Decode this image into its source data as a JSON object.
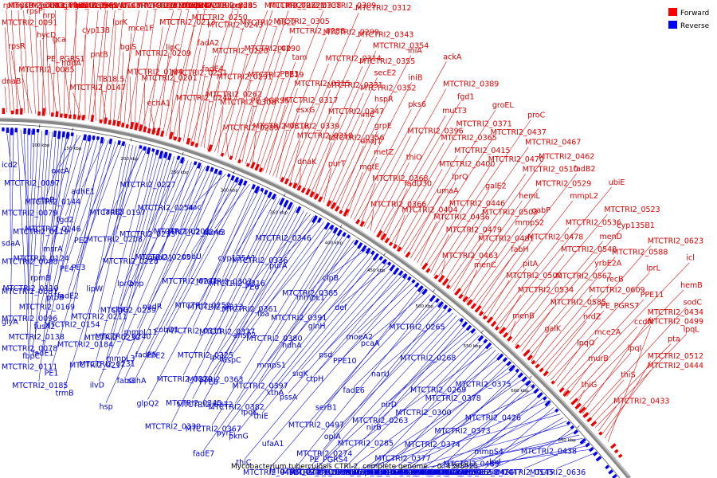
{
  "caption": "Mycobacterium tuberculosis CTRI-2, complete genome. - 0..4398525",
  "legend": [
    {
      "label": "Forward",
      "color": "#ff0000"
    },
    {
      "label": "Reverse",
      "color": "#0000ff"
    }
  ],
  "colors": {
    "forward": "#dd0000",
    "reverse": "#0000dd",
    "backbone": "#888888"
  },
  "ticks": [
    "100 kbp",
    "150 kbp",
    "200 kbp",
    "250 kbp",
    "300 kbp",
    "350 kbp",
    "400 kbp",
    "450 kbp",
    "500 kbp",
    "550 kbp",
    "600 kbp",
    "650 kbp"
  ],
  "forward_genes": [
    "dnaB",
    "MTCTRI2_0091",
    "rplI",
    "MTCTRI2_0083",
    "rpsR",
    "hycP",
    "ssb",
    "MTCTRI2_0085",
    "rpsF",
    "MTCTRI2_0086",
    "ponA1",
    "hycD",
    "nrp",
    "MTCTRI2_0109",
    "PE_PGRS1",
    "gca",
    "gmhA",
    "gmhB",
    "hddA",
    "fadD7",
    "MTCTRI2_0148",
    "MTCTRI2_0147",
    "cyp138",
    "ephF",
    "treS",
    "pntB",
    "pntAb",
    "pntAa",
    "TB18.5",
    "lprK",
    "MTCTRI2_0162",
    "MTCTRI2_0191",
    "bglS",
    "mce1F",
    "MTCTRI2_0189",
    "MTCTRI2_0194",
    "MTCTRI2_0209",
    "MTCTRI2_0207",
    "MTCTRI2_0203",
    "MTCTRI2_0201",
    "MTCTRI2_0213",
    "MTCTRI2_0199",
    "echA1",
    "lipC",
    "fadD4",
    "pckA",
    "MTCTRI2_0251",
    "MTCTRI2_0250",
    "MTCTRI2_0245",
    "MTCTRI2_0244",
    "fadA2",
    "MTCTRI2_0243",
    "lpqI",
    "fadE4",
    "MTCTRI2_0220",
    "nrdB",
    "MTCTRI2_0262",
    "MTCTRI2_0291",
    "MTCTRI2_0322",
    "MTCTRI2_0277",
    "MTCTRI2_0308",
    "MTCTRI2_0290",
    "MTCTRI2_0321",
    "MTCTRI2_0289",
    "MTCTRI2_0319",
    "MTCTRI2_0305",
    "MTCTRI2_0338",
    "PE_PGRS5",
    "pcp",
    "MTCTRI2_0288",
    "MTCTRI2_0318",
    "PPE3",
    "tam",
    "MTCTRI2_0309",
    "MTCTRI2_0317",
    "MTCTRI2_0315",
    "MTCTRI2_0299",
    "MTCTRI2_0339",
    "esxG",
    "MTCTRI2_0314",
    "MTCTRI2_0312",
    "MTCTRI2_0310",
    "MTCTRI2_0331",
    "MTCTRI2_0343",
    "dnaK",
    "MTCTRI2_0347",
    "MTCTRI2_0355",
    "MTCTRI2_0354",
    "MTCTRI2_0356",
    "MTCTRI2_0352",
    "secE2",
    "purT",
    "iniC",
    "hspR",
    "iniA",
    "dnaJ1",
    "grpE",
    "iniB",
    "mgtE",
    "metZ",
    "pks6",
    "ackA",
    "MTCTRI2_0368",
    "MTCTRI2_0396",
    "MTCTRI2_0389",
    "MTCTRI2_0366",
    "thiO",
    "mutT3",
    "fgd1",
    "fadD30",
    "MTCTRI2_0365",
    "MTCTRI2_0371",
    "MTCTRI2_0404",
    "MTCTRI2_0400",
    "MTCTRI2_0415",
    "groEL",
    "umaA",
    "lprQ",
    "MTCTRI2_0437",
    "MTCTRI2_0436",
    "MTCTRI2_0446",
    "MTCTRI2_0470",
    "proC",
    "MTCTRI2_0479",
    "galE2",
    "MTCTRI2_0467",
    "MTCTRI2_0463",
    "MTCTRI2_0503",
    "MTCTRI2_0510",
    "MTCTRI2_0462",
    "MTCTRI2_0481",
    "hemL",
    "MTCTRI2_0529",
    "menC",
    "mmpS2",
    "gabP",
    "fadB2",
    "fabH",
    "MTCTRI2_0478",
    "mmpL2",
    "MTCTRI2_0500",
    "pitA",
    "MTCTRI2_0536",
    "ubiE",
    "MTCTRI2_0534",
    "MTCTRI2_0548",
    "MTCTRI2_0523",
    "menB",
    "MTCTRI2_0567",
    "menD",
    "cyp135B1",
    "MTCTRI2_0585",
    "yrbE2A",
    "MTCTRI2_0588",
    "galK",
    "MTCTRI2_0609",
    "recB",
    "MTCTRI2_0623",
    "nrdZ",
    "PE_PGRS7",
    "lprL",
    "lpqO",
    "mce2A",
    "PPE11",
    "icl",
    "murB",
    "ccdA",
    "hemB",
    "thiG",
    "lpqI",
    "MTCTRI2_0434",
    "sodC",
    "thiS",
    "pta",
    "lpqL",
    "MTCTRI2_0433",
    "MTCTRI2_0444",
    "MTCTRI2_0512",
    "MTCTRI2_0499"
  ],
  "reverse_genes": [
    "icd2",
    "sdaA",
    "glyA",
    "MTCTRI2_0078",
    "MTCTRI2_0079",
    "MTCTRI2_0081",
    "MTCTRI2_0096",
    "MTCTRI2_0097",
    "MTCTRI2_0098",
    "MTCTRI2_0110",
    "MTCTRI2_0111",
    "MTCTRI2_0119",
    "MTCTRI2_0124",
    "MTCTRI2_0138",
    "MTCTRI2_0144",
    "MTCTRI2_0146",
    "MTCTRI2_0169",
    "MTCTRI2_0185",
    "ctpB",
    "rpmB",
    "fbpC",
    "oxcA",
    "msrA",
    "fusA2",
    "fadE1",
    "fgd2",
    "ptbB",
    "MTCTRI2_0154",
    "adhE1",
    "PE4",
    "fadE2",
    "PE1",
    "PE2",
    "PE3",
    "MTCTRI2_0184",
    "MTCTRI2_0197",
    "MTCTRI2_0208",
    "MTCTRI2_0211",
    "trmB",
    "fadE3",
    "lipW",
    "MTCTRI2_0217",
    "MTCTRI2_0227",
    "MTCTRI2_0228",
    "MTCTRI2_0230",
    "MTCTRI2_0231",
    "MTCTRI2_0233",
    "MTCTRI2_0239",
    "MTCTRI2_0240",
    "MTCTRI2_0254",
    "lprO",
    "sigG",
    "ilvD",
    "MTCTRI2_0205",
    "php",
    "mmpL3",
    "MTCTRI2_0202",
    "gabD1",
    "mmpL11",
    "hsp",
    "MTCTRI2_0246",
    "nadR",
    "fabG",
    "aac",
    "MTCTRI2_0241",
    "fadE5",
    "sdhA",
    "cobU",
    "cobQ1",
    "PPE2",
    "nark3",
    "MTCTRI2_0252",
    "MTCTRI2_0311",
    "glpQ2",
    "MTCTRI2_0303",
    "MTCTRI2_0313",
    "MTCTRI2_0320",
    "cyp135A1",
    "MTCTRI2_0316",
    "MTCTRI2_0325",
    "MTCTRI2_0330",
    "MTCTRI2_0336",
    "MTCTRI2_0337",
    "MTCTRI2_0345",
    "MTCTRI2_0346",
    "MTCTRI2_0361",
    "MTCTRI2_0363",
    "MTCTRI2_0372",
    "PE6",
    "lpqJ",
    "PPE8",
    "purA",
    "ansP2",
    "aspC",
    "MTCTRI2_0367",
    "fba",
    "MTCTRI2_0380",
    "MTCTRI2_0382",
    "MTCTRI2_0385",
    "MTCTRI2_0391",
    "MTCTRI2_0397",
    "fadE7",
    "mmpL1",
    "mmpS1",
    "pyrE",
    "clpB",
    "ndhA",
    "lpqK",
    "pknG",
    "glnH",
    "xthA",
    "thiE",
    "def",
    "sigK",
    "pssA",
    "thiC",
    "psd",
    "ctpH",
    "ufaA1",
    "moeA2",
    "PPE10",
    "MTCTRI2_0497",
    "MTCTRI2_0498",
    "pcaA",
    "serB1",
    "MTCTRI2_0255",
    "MTCTRI2_0265",
    "fadE6",
    "MTCTRI2_0274",
    "MTCTRI2_0273",
    "narU",
    "oplA",
    "PE_PGRS4",
    "MTCTRI2_0268",
    "MTCTRI2_0263",
    "MTCTRI2_0285",
    "MTCTRI2_0283",
    "nirD",
    "nirB",
    "MTCTRI2_0270",
    "MTCTRI2_0269",
    "MTCTRI2_0300",
    "MTCTRI2_0284",
    "MTCTRI2_0379",
    "MTCTRI2_0378",
    "MTCTRI2_0377",
    "MTCTRI2_0376",
    "MTCTRI2_0375",
    "MTCTRI2_0374",
    "MTCTRI2_0384",
    "MTCTRI2_0381",
    "MTCTRI2_0373",
    "MTCTRI2_0387",
    "MTCTRI2_0409",
    "MTCTRI2_0426",
    "MTCTRI2_0431",
    "MTCTRI2_0442",
    "MTCTRI2_0469",
    "MTCTRI2_0489",
    "MTCTRI2_0501",
    "MTCTRI2_0427",
    "mmpS4",
    "MTCTRI2_0424",
    "MTCTRI2_0423",
    "mmpL4",
    "lpd",
    "MTCTRI2_0452",
    "MTCTRI2_0458",
    "MTCTRI2_0438",
    "MTCTRI2_0447",
    "MTCTRI2_0468",
    "MTCTRI2_0475",
    "MTCTRI2_0545",
    "MTCTRI2_0558",
    "MTCTRI2_0569",
    "MTCTRI2_0636"
  ]
}
